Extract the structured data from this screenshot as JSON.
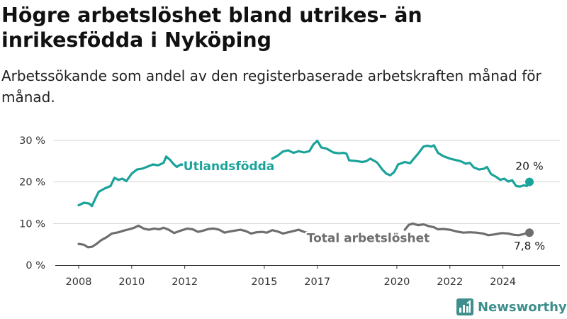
{
  "header": {
    "title": "Högre arbetslöshet bland utrikes- än inrikesfödda i Nyköping",
    "subtitle": "Arbetssökande som andel av den registerbaserade arbetskraften månad för månad."
  },
  "brand": {
    "name": "Newsworthy",
    "icon": "bar-chart-logo-icon",
    "color": "#3e8f8c"
  },
  "chart_data": {
    "type": "line",
    "ylim": [
      0,
      30
    ],
    "y_ticks": [
      {
        "value": 0,
        "label": "0 %"
      },
      {
        "value": 10,
        "label": "10 %"
      },
      {
        "value": 20,
        "label": "20 %"
      },
      {
        "value": 30,
        "label": "30 %"
      }
    ],
    "x_range": [
      2007.6,
      2025.0
    ],
    "x_ticks": [
      {
        "value": 2008,
        "label": "2008"
      },
      {
        "value": 2010,
        "label": "2010"
      },
      {
        "value": 2012,
        "label": "2012"
      },
      {
        "value": 2015,
        "label": "2015"
      },
      {
        "value": 2017,
        "label": "2017"
      },
      {
        "value": 2020,
        "label": "2020"
      },
      {
        "value": 2022,
        "label": "2022"
      },
      {
        "value": 2024,
        "label": "2024"
      }
    ],
    "grid": "horizontal",
    "series": [
      {
        "name": "Utlandsfödda",
        "color": "#1aa39a",
        "end_label": "20 %",
        "segments": [
          [
            [
              2008.0,
              14.4
            ],
            [
              2008.2,
              15.0
            ],
            [
              2008.4,
              14.8
            ],
            [
              2008.5,
              14.2
            ],
            [
              2008.6,
              15.6
            ],
            [
              2008.75,
              17.6
            ],
            [
              2009.0,
              18.5
            ],
            [
              2009.2,
              19.0
            ],
            [
              2009.35,
              21.0
            ],
            [
              2009.5,
              20.5
            ],
            [
              2009.65,
              20.8
            ],
            [
              2009.8,
              20.2
            ],
            [
              2010.0,
              22.0
            ],
            [
              2010.2,
              23.0
            ],
            [
              2010.4,
              23.2
            ],
            [
              2010.6,
              23.7
            ],
            [
              2010.8,
              24.2
            ],
            [
              2011.0,
              24.0
            ],
            [
              2011.2,
              24.6
            ],
            [
              2011.3,
              26.1
            ],
            [
              2011.45,
              25.3
            ],
            [
              2011.55,
              24.5
            ],
            [
              2011.7,
              23.6
            ],
            [
              2011.85,
              24.2
            ],
            [
              2012.0,
              24.1
            ]
          ],
          [
            [
              2015.3,
              25.6
            ],
            [
              2015.5,
              26.3
            ],
            [
              2015.7,
              27.3
            ],
            [
              2015.9,
              27.6
            ],
            [
              2016.1,
              27.0
            ],
            [
              2016.3,
              27.4
            ],
            [
              2016.5,
              27.1
            ],
            [
              2016.7,
              27.4
            ],
            [
              2016.85,
              29.0
            ],
            [
              2017.0,
              29.9
            ],
            [
              2017.15,
              28.3
            ],
            [
              2017.35,
              28.0
            ],
            [
              2017.6,
              27.1
            ],
            [
              2017.8,
              26.9
            ],
            [
              2018.0,
              27.0
            ],
            [
              2018.1,
              26.8
            ],
            [
              2018.2,
              25.2
            ],
            [
              2018.5,
              25.0
            ],
            [
              2018.7,
              24.8
            ],
            [
              2018.85,
              25.0
            ],
            [
              2019.0,
              25.6
            ],
            [
              2019.25,
              24.7
            ],
            [
              2019.45,
              23.0
            ],
            [
              2019.6,
              22.0
            ],
            [
              2019.75,
              21.6
            ],
            [
              2019.9,
              22.4
            ],
            [
              2020.05,
              24.2
            ],
            [
              2020.3,
              24.8
            ],
            [
              2020.5,
              24.5
            ],
            [
              2020.6,
              25.3
            ],
            [
              2020.8,
              26.8
            ],
            [
              2021.0,
              28.5
            ],
            [
              2021.15,
              28.7
            ],
            [
              2021.3,
              28.5
            ],
            [
              2021.4,
              28.8
            ],
            [
              2021.55,
              27.0
            ],
            [
              2021.75,
              26.2
            ],
            [
              2022.0,
              25.6
            ],
            [
              2022.2,
              25.3
            ],
            [
              2022.4,
              25.0
            ],
            [
              2022.6,
              24.4
            ],
            [
              2022.75,
              24.6
            ],
            [
              2022.9,
              23.5
            ],
            [
              2023.1,
              23.0
            ],
            [
              2023.3,
              23.2
            ],
            [
              2023.4,
              23.6
            ],
            [
              2023.55,
              21.9
            ],
            [
              2023.75,
              21.2
            ],
            [
              2023.9,
              20.5
            ],
            [
              2024.05,
              20.8
            ],
            [
              2024.2,
              20.1
            ],
            [
              2024.35,
              20.4
            ],
            [
              2024.5,
              19.0
            ],
            [
              2024.65,
              18.9
            ],
            [
              2024.8,
              19.2
            ],
            [
              2024.9,
              19.0
            ],
            [
              2025.0,
              20.0
            ]
          ]
        ]
      },
      {
        "name": "Total arbetslöshet",
        "color": "#6e6e70",
        "end_label": "7,8 %",
        "segments": [
          [
            [
              2008.0,
              5.1
            ],
            [
              2008.2,
              4.9
            ],
            [
              2008.35,
              4.3
            ],
            [
              2008.5,
              4.4
            ],
            [
              2008.65,
              5.0
            ],
            [
              2008.85,
              6.0
            ],
            [
              2009.05,
              6.7
            ],
            [
              2009.25,
              7.6
            ],
            [
              2009.5,
              7.9
            ],
            [
              2009.7,
              8.3
            ],
            [
              2009.9,
              8.6
            ],
            [
              2010.1,
              9.0
            ],
            [
              2010.25,
              9.5
            ],
            [
              2010.45,
              8.8
            ],
            [
              2010.65,
              8.5
            ],
            [
              2010.85,
              8.8
            ],
            [
              2011.05,
              8.6
            ],
            [
              2011.2,
              9.0
            ],
            [
              2011.4,
              8.5
            ],
            [
              2011.6,
              7.7
            ],
            [
              2011.85,
              8.3
            ],
            [
              2012.1,
              8.8
            ],
            [
              2012.3,
              8.6
            ],
            [
              2012.5,
              8.0
            ],
            [
              2012.7,
              8.3
            ],
            [
              2012.9,
              8.7
            ],
            [
              2013.1,
              8.8
            ],
            [
              2013.3,
              8.5
            ],
            [
              2013.5,
              7.8
            ],
            [
              2013.7,
              8.1
            ],
            [
              2013.9,
              8.3
            ],
            [
              2014.1,
              8.5
            ],
            [
              2014.3,
              8.2
            ],
            [
              2014.5,
              7.6
            ],
            [
              2014.7,
              7.9
            ],
            [
              2014.9,
              8.0
            ],
            [
              2015.1,
              7.8
            ],
            [
              2015.3,
              8.4
            ],
            [
              2015.5,
              8.1
            ],
            [
              2015.7,
              7.6
            ],
            [
              2015.9,
              7.9
            ],
            [
              2016.1,
              8.2
            ],
            [
              2016.3,
              8.5
            ],
            [
              2016.5,
              8.0
            ],
            [
              2016.7,
              7.6
            ]
          ],
          [
            [
              2020.3,
              8.5
            ],
            [
              2020.45,
              9.7
            ],
            [
              2020.6,
              10.0
            ],
            [
              2020.8,
              9.6
            ],
            [
              2021.0,
              9.8
            ],
            [
              2021.2,
              9.4
            ],
            [
              2021.4,
              9.1
            ],
            [
              2021.55,
              8.6
            ],
            [
              2021.75,
              8.7
            ],
            [
              2022.0,
              8.5
            ],
            [
              2022.25,
              8.1
            ],
            [
              2022.5,
              7.8
            ],
            [
              2022.75,
              7.9
            ],
            [
              2023.0,
              7.8
            ],
            [
              2023.25,
              7.6
            ],
            [
              2023.45,
              7.2
            ],
            [
              2023.7,
              7.4
            ],
            [
              2023.95,
              7.7
            ],
            [
              2024.2,
              7.6
            ],
            [
              2024.4,
              7.3
            ],
            [
              2024.6,
              7.2
            ],
            [
              2024.8,
              7.5
            ],
            [
              2025.0,
              7.8
            ]
          ]
        ]
      }
    ]
  }
}
